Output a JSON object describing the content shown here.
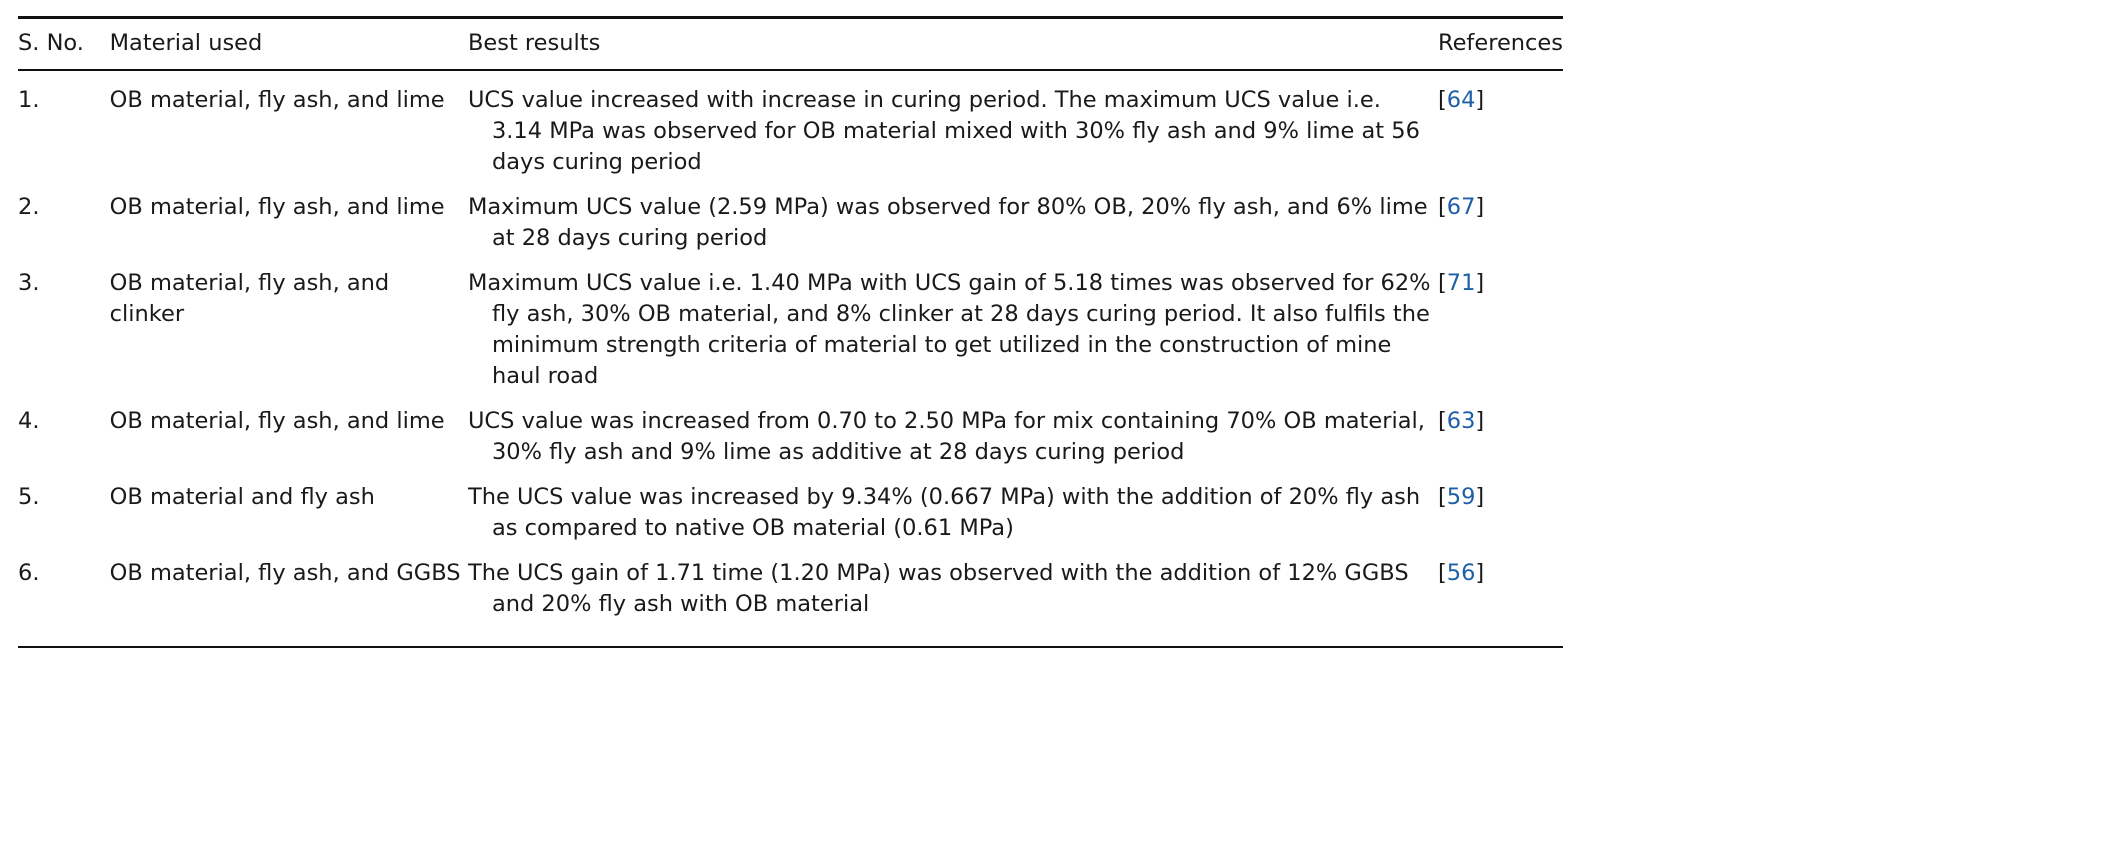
{
  "table": {
    "headers": [
      "S. No.",
      "Material used",
      "Best results",
      "References"
    ],
    "rows": [
      {
        "sno": "1.",
        "material": "OB material, fly ash, and lime",
        "result": "UCS value increased with increase in curing period. The maximum UCS value i.e. 3.14 MPa was observed for OB material mixed with 30% fly ash and 9% lime at 56 days curing period",
        "ref": "64"
      },
      {
        "sno": "2.",
        "material": "OB material, fly ash, and lime",
        "result": "Maximum UCS value (2.59 MPa) was observed for 80% OB, 20% fly ash, and 6% lime at 28 days curing period",
        "ref": "67"
      },
      {
        "sno": "3.",
        "material": "OB material, fly ash, and clinker",
        "result": "Maximum UCS value i.e. 1.40 MPa with UCS gain of 5.18 times was observed for 62% fly ash, 30% OB material, and 8% clinker at 28 days curing period. It also fulfils the minimum strength criteria of material to get utilized in the construction of mine haul road",
        "ref": "71"
      },
      {
        "sno": "4.",
        "material": "OB material, fly ash, and lime",
        "result": "UCS value was increased from 0.70 to 2.50 MPa for mix containing 70% OB material, 30% fly ash and 9% lime as additive at 28 days curing period",
        "ref": "63"
      },
      {
        "sno": "5.",
        "material": "OB material and fly ash",
        "result": "The UCS value was increased by 9.34% (0.667 MPa) with the addition of 20% fly ash as compared to native OB material (0.61 MPa)",
        "ref": "59"
      },
      {
        "sno": "6.",
        "material": "OB material, fly ash, and GGBS",
        "result": "The UCS gain of 1.71 time (1.20 MPa) was observed with the addition of 12% GGBS and 20% fly ash with OB material",
        "ref": "56"
      }
    ]
  },
  "colors": {
    "reference_link": "#1f5fa8"
  }
}
